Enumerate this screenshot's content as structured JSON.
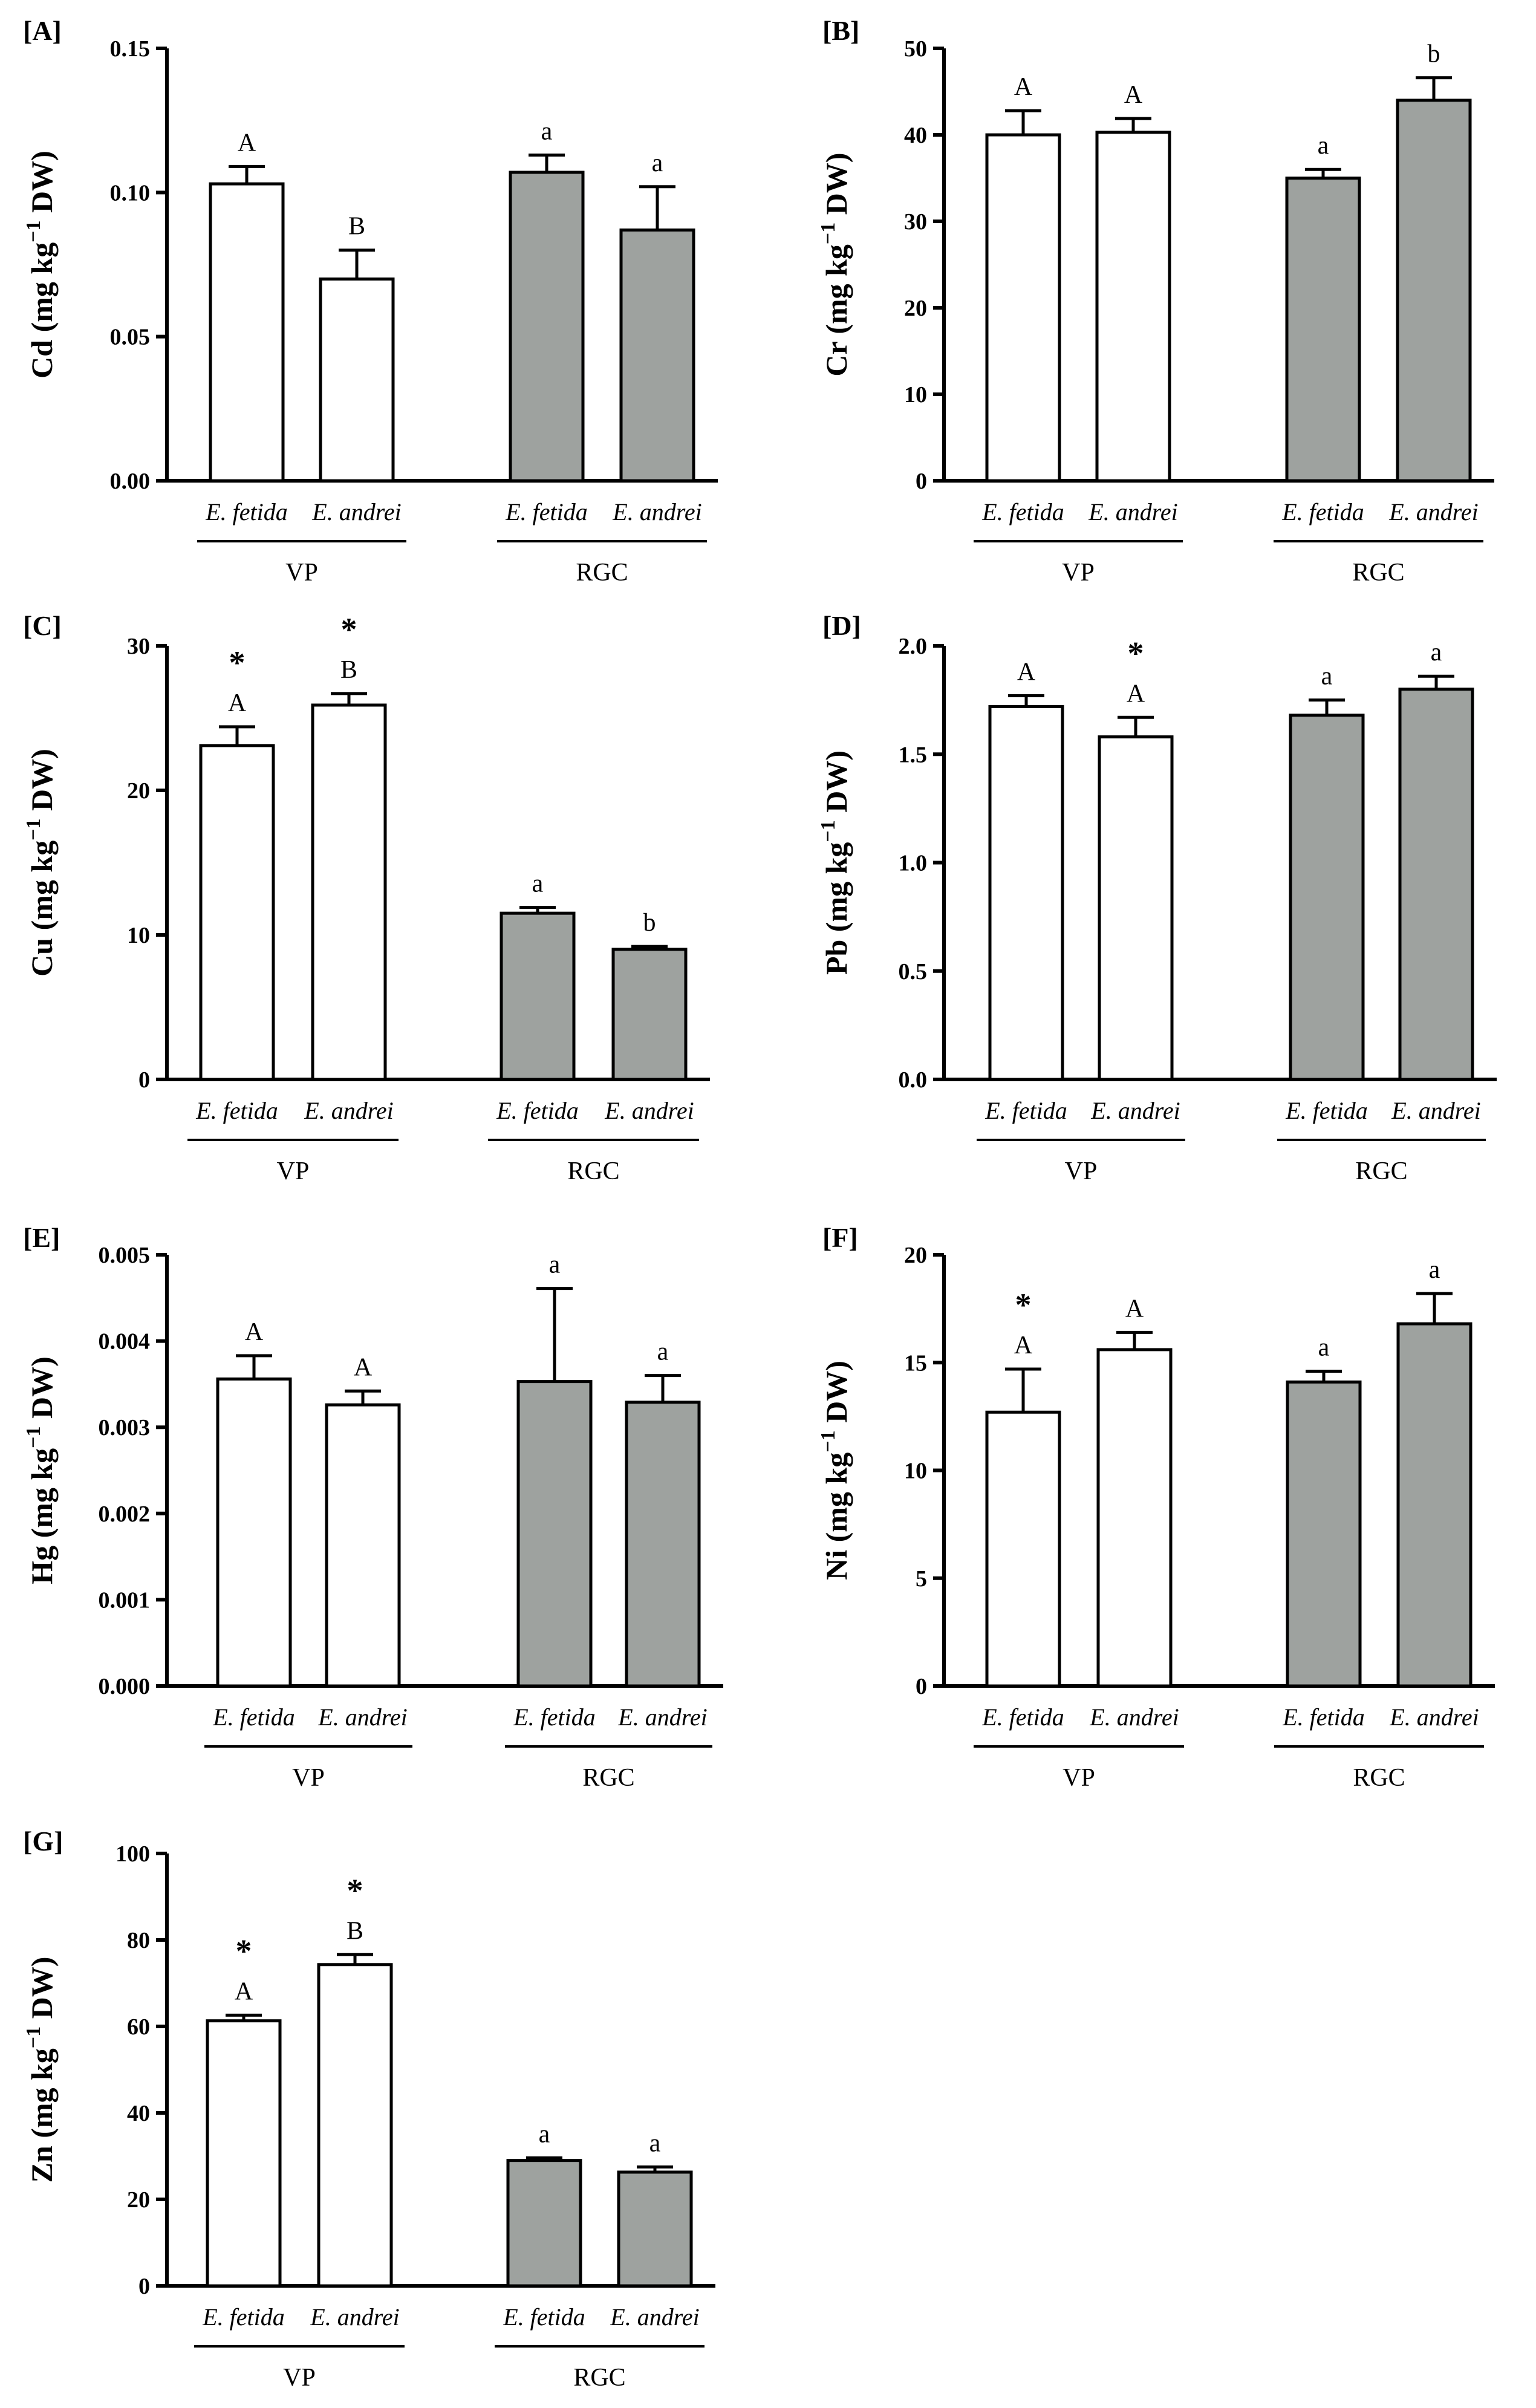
{
  "colors": {
    "VP": "#ffffff",
    "RGC": "#9ea29f",
    "stroke": "#000000"
  },
  "chart_data": [
    {
      "type": "bar",
      "panel": "[A]",
      "ylabel": "Cd (mg kg",
      "ylabel_sup": "−1",
      "ylabel_end": " DW)",
      "ylim": [
        0,
        0.15
      ],
      "yticks": [
        "0.00",
        "0.05",
        "0.10",
        "0.15"
      ],
      "categories": [
        "E. fetida",
        "E. andrei",
        "E. fetida",
        "E. andrei"
      ],
      "groups": [
        "VP",
        "RGC"
      ],
      "values": [
        0.103,
        0.07,
        0.107,
        0.087
      ],
      "errors": [
        0.006,
        0.01,
        0.006,
        0.015
      ],
      "letters": [
        "A",
        "B",
        "a",
        "a"
      ],
      "stars": [
        "",
        "",
        "",
        ""
      ]
    },
    {
      "type": "bar",
      "panel": "[B]",
      "ylabel": "Cr (mg kg",
      "ylabel_sup": "−1",
      "ylabel_end": " DW)",
      "ylim": [
        0,
        50
      ],
      "yticks": [
        "0",
        "10",
        "20",
        "30",
        "40",
        "50"
      ],
      "categories": [
        "E. fetida",
        "E. andrei",
        "E. fetida",
        "E. andrei"
      ],
      "groups": [
        "VP",
        "RGC"
      ],
      "values": [
        40.0,
        40.3,
        35.0,
        44.0
      ],
      "errors": [
        2.8,
        1.6,
        1.0,
        2.6
      ],
      "letters": [
        "A",
        "A",
        "a",
        "b"
      ],
      "stars": [
        "",
        "",
        "",
        ""
      ]
    },
    {
      "type": "bar",
      "panel": "[C]",
      "ylabel": "Cu (mg kg",
      "ylabel_sup": "−1",
      "ylabel_end": " DW)",
      "ylim": [
        0,
        30
      ],
      "yticks": [
        "0",
        "10",
        "20",
        "30"
      ],
      "categories": [
        "E. fetida",
        "E. andrei",
        "E. fetida",
        "E. andrei"
      ],
      "groups": [
        "VP",
        "RGC"
      ],
      "values": [
        23.1,
        25.9,
        11.5,
        9.0
      ],
      "errors": [
        1.3,
        0.8,
        0.4,
        0.2
      ],
      "letters": [
        "A",
        "B",
        "a",
        "b"
      ],
      "stars": [
        "*",
        "*",
        "",
        ""
      ]
    },
    {
      "type": "bar",
      "panel": "[D]",
      "ylabel": "Pb (mg kg",
      "ylabel_sup": "−1",
      "ylabel_end": " DW)",
      "ylim": [
        0,
        2.0
      ],
      "yticks": [
        "0.0",
        "0.5",
        "1.0",
        "1.5",
        "2.0"
      ],
      "categories": [
        "E. fetida",
        "E. andrei",
        "E. fetida",
        "E. andrei"
      ],
      "groups": [
        "VP",
        "RGC"
      ],
      "values": [
        1.72,
        1.58,
        1.68,
        1.8
      ],
      "errors": [
        0.05,
        0.09,
        0.07,
        0.06
      ],
      "letters": [
        "A",
        "A",
        "a",
        "a"
      ],
      "stars": [
        "",
        "*",
        "",
        ""
      ]
    },
    {
      "type": "bar",
      "panel": "[E]",
      "ylabel": "Hg (mg kg",
      "ylabel_sup": "−1",
      "ylabel_end": " DW)",
      "ylim": [
        0,
        0.005
      ],
      "yticks": [
        "0.000",
        "0.001",
        "0.002",
        "0.003",
        "0.004",
        "0.005"
      ],
      "categories": [
        "E. fetida",
        "E. andrei",
        "E. fetida",
        "E. andrei"
      ],
      "groups": [
        "VP",
        "RGC"
      ],
      "values": [
        0.00356,
        0.00326,
        0.00353,
        0.00329
      ],
      "errors": [
        0.00027,
        0.00016,
        0.00108,
        0.00031
      ],
      "letters": [
        "A",
        "A",
        "a",
        "a"
      ],
      "stars": [
        "",
        "",
        "",
        ""
      ]
    },
    {
      "type": "bar",
      "panel": "[F]",
      "ylabel": "Ni (mg kg",
      "ylabel_sup": "−1",
      "ylabel_end": " DW)",
      "ylim": [
        0,
        20
      ],
      "yticks": [
        "0",
        "5",
        "10",
        "15",
        "20"
      ],
      "categories": [
        "E. fetida",
        "E. andrei",
        "E. fetida",
        "E. andrei"
      ],
      "groups": [
        "VP",
        "RGC"
      ],
      "values": [
        12.7,
        15.6,
        14.1,
        16.8
      ],
      "errors": [
        2.0,
        0.8,
        0.5,
        1.4
      ],
      "letters": [
        "A",
        "A",
        "a",
        "a"
      ],
      "stars": [
        "*",
        "",
        "",
        ""
      ]
    },
    {
      "type": "bar",
      "panel": "[G]",
      "ylabel": "Zn (mg kg",
      "ylabel_sup": "−1",
      "ylabel_end": " DW)",
      "ylim": [
        0,
        100
      ],
      "yticks": [
        "0",
        "20",
        "40",
        "60",
        "80",
        "100"
      ],
      "categories": [
        "E. fetida",
        "E. andrei",
        "E. fetida",
        "E. andrei"
      ],
      "groups": [
        "VP",
        "RGC"
      ],
      "values": [
        61.3,
        74.3,
        29.0,
        26.3
      ],
      "errors": [
        1.3,
        2.3,
        0.6,
        1.2
      ],
      "letters": [
        "A",
        "B",
        "a",
        "a"
      ],
      "stars": [
        "*",
        "*",
        "",
        ""
      ]
    }
  ]
}
